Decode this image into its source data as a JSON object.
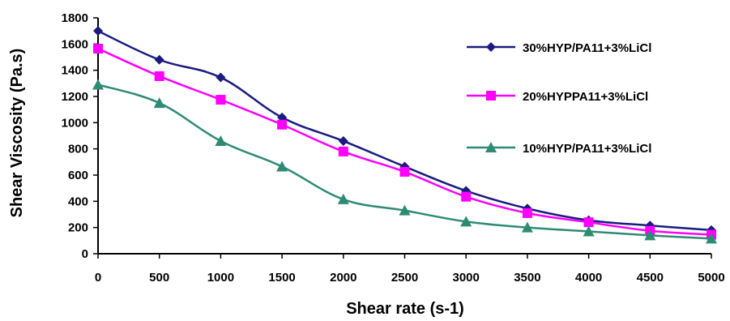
{
  "chart_data": {
    "type": "line",
    "title": "",
    "xlabel": "Shear rate (s-1)",
    "ylabel": "Shear Viscosity (Pa.s)",
    "xlim": [
      0,
      5000
    ],
    "ylim": [
      0,
      1800
    ],
    "x_ticks": [
      0,
      500,
      1000,
      1500,
      2000,
      2500,
      3000,
      3500,
      4000,
      4500,
      5000
    ],
    "y_ticks": [
      0,
      200,
      400,
      600,
      800,
      1000,
      1200,
      1400,
      1600,
      1800
    ],
    "x_tick_labels": [
      "0",
      "500",
      "1000",
      "1500",
      "2000",
      "2500",
      "3000",
      "3500",
      "4000",
      "4500",
      "5000"
    ],
    "y_tick_labels": [
      "0",
      "200",
      "400",
      "600",
      "800",
      "1000",
      "1200",
      "1400",
      "1600",
      "1800"
    ],
    "x": [
      0,
      500,
      1000,
      1500,
      2000,
      2500,
      3000,
      3500,
      4000,
      4500,
      5000
    ],
    "grid": false,
    "legend_position": "right",
    "series": [
      {
        "name": "30%HYP/PA11+3%LiCl",
        "color": "#1a1a80",
        "marker": "diamond",
        "values": [
          1700,
          1480,
          1345,
          1040,
          860,
          665,
          480,
          345,
          255,
          215,
          180
        ]
      },
      {
        "name": "20%HYPPA11+3%LiCl",
        "color": "#ff00ff",
        "marker": "square",
        "values": [
          1565,
          1355,
          1175,
          985,
          780,
          625,
          435,
          310,
          240,
          175,
          145
        ]
      },
      {
        "name": "10%HYP/PA11+3%LiCl",
        "color": "#2e8b73",
        "marker": "triangle",
        "values": [
          1290,
          1150,
          860,
          665,
          415,
          330,
          245,
          200,
          170,
          140,
          115
        ]
      }
    ]
  }
}
